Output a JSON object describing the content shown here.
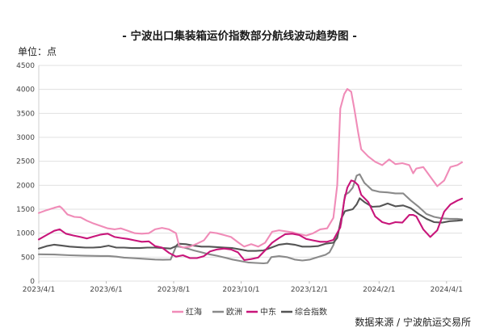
{
  "chart_data": {
    "type": "line",
    "title": "- 宁波出口集装箱运价指数部分航线波动趋势图 -",
    "unit_label": "单位：点",
    "source": "数据来源 / 宁波航运交易所",
    "ylim": [
      0,
      4500
    ],
    "y_ticks": [
      "0",
      "500",
      "1000",
      "1500",
      "2000",
      "2500",
      "3000",
      "3500",
      "4000",
      "4500"
    ],
    "x_tick_labels": [
      "2023/4/1",
      "2023/6/1",
      "2023/8/1",
      "2023/10/1",
      "2023/12/1",
      "2024/2/1",
      "2024/4/1"
    ],
    "x_tick_weeks": [
      0,
      8.7,
      17.4,
      26.1,
      34.9,
      43.9,
      52.6
    ],
    "x_range_weeks": [
      0,
      54.6
    ],
    "grid": true,
    "legend_position": "bottom",
    "series": [
      {
        "name": "红海",
        "color": "#f08cb8",
        "points": [
          [
            0,
            1420
          ],
          [
            1,
            1480
          ],
          [
            2,
            1530
          ],
          [
            2.7,
            1560
          ],
          [
            3,
            1520
          ],
          [
            3.7,
            1390
          ],
          [
            4.6,
            1340
          ],
          [
            5.4,
            1330
          ],
          [
            6.2,
            1260
          ],
          [
            7.1,
            1200
          ],
          [
            8,
            1150
          ],
          [
            8.9,
            1100
          ],
          [
            9.8,
            1080
          ],
          [
            10.6,
            1100
          ],
          [
            11.5,
            1050
          ],
          [
            12.4,
            1000
          ],
          [
            13.3,
            990
          ],
          [
            14.2,
            1000
          ],
          [
            15,
            1080
          ],
          [
            15.9,
            1110
          ],
          [
            16.8,
            1080
          ],
          [
            17.7,
            1000
          ],
          [
            18.1,
            740
          ],
          [
            18.6,
            700
          ],
          [
            19.5,
            720
          ],
          [
            20.4,
            780
          ],
          [
            21.3,
            850
          ],
          [
            22.1,
            1020
          ],
          [
            23,
            1000
          ],
          [
            23.9,
            960
          ],
          [
            24.8,
            920
          ],
          [
            25.7,
            810
          ],
          [
            26.5,
            720
          ],
          [
            27.4,
            770
          ],
          [
            28.3,
            720
          ],
          [
            29.2,
            800
          ],
          [
            30.1,
            1030
          ],
          [
            31,
            1060
          ],
          [
            31.8,
            1040
          ],
          [
            32.7,
            1020
          ],
          [
            33.6,
            980
          ],
          [
            34.5,
            950
          ],
          [
            35.4,
            1000
          ],
          [
            36.3,
            1080
          ],
          [
            37.2,
            1100
          ],
          [
            38,
            1320
          ],
          [
            38.5,
            2000
          ],
          [
            38.9,
            3600
          ],
          [
            39.4,
            3900
          ],
          [
            39.8,
            4010
          ],
          [
            40.3,
            3950
          ],
          [
            40.7,
            3600
          ],
          [
            41.2,
            3100
          ],
          [
            41.6,
            2750
          ],
          [
            42.5,
            2600
          ],
          [
            43.4,
            2490
          ],
          [
            44.3,
            2420
          ],
          [
            45.2,
            2540
          ],
          [
            46,
            2440
          ],
          [
            46.9,
            2460
          ],
          [
            47.8,
            2420
          ],
          [
            48.3,
            2250
          ],
          [
            48.7,
            2350
          ],
          [
            49.6,
            2380
          ],
          [
            50.5,
            2180
          ],
          [
            51.4,
            1980
          ],
          [
            52.3,
            2100
          ],
          [
            53.1,
            2380
          ],
          [
            54,
            2420
          ],
          [
            54.6,
            2480
          ]
        ]
      },
      {
        "name": "欧洲",
        "color": "#8a8a8a",
        "points": [
          [
            0,
            560
          ],
          [
            2,
            555
          ],
          [
            4,
            540
          ],
          [
            6,
            530
          ],
          [
            8,
            525
          ],
          [
            9,
            525
          ],
          [
            10,
            510
          ],
          [
            11,
            490
          ],
          [
            12,
            480
          ],
          [
            13,
            470
          ],
          [
            14,
            460
          ],
          [
            15,
            450
          ],
          [
            16,
            445
          ],
          [
            17,
            450
          ],
          [
            17.7,
            720
          ],
          [
            18.1,
            720
          ],
          [
            19,
            690
          ],
          [
            20,
            640
          ],
          [
            21,
            600
          ],
          [
            22,
            560
          ],
          [
            23,
            530
          ],
          [
            24,
            490
          ],
          [
            25,
            450
          ],
          [
            26,
            420
          ],
          [
            27,
            390
          ],
          [
            28,
            380
          ],
          [
            29,
            370
          ],
          [
            29.5,
            380
          ],
          [
            30,
            500
          ],
          [
            31,
            520
          ],
          [
            32,
            500
          ],
          [
            33,
            450
          ],
          [
            34,
            430
          ],
          [
            35,
            450
          ],
          [
            36,
            500
          ],
          [
            37,
            550
          ],
          [
            37.5,
            600
          ],
          [
            38,
            750
          ],
          [
            39,
            1200
          ],
          [
            39.5,
            1800
          ],
          [
            40,
            1850
          ],
          [
            40.5,
            1950
          ],
          [
            41,
            2200
          ],
          [
            41.4,
            2230
          ],
          [
            42,
            2050
          ],
          [
            43,
            1900
          ],
          [
            44,
            1860
          ],
          [
            45,
            1850
          ],
          [
            46,
            1830
          ],
          [
            47,
            1830
          ],
          [
            48,
            1680
          ],
          [
            49,
            1550
          ],
          [
            50,
            1400
          ],
          [
            51,
            1340
          ],
          [
            52,
            1310
          ],
          [
            53,
            1300
          ],
          [
            54,
            1300
          ],
          [
            54.6,
            1290
          ]
        ]
      },
      {
        "name": "中东",
        "color": "#c8157a",
        "points": [
          [
            0,
            870
          ],
          [
            1,
            960
          ],
          [
            2,
            1050
          ],
          [
            2.7,
            1080
          ],
          [
            3.5,
            990
          ],
          [
            4.5,
            950
          ],
          [
            5.4,
            920
          ],
          [
            6.2,
            890
          ],
          [
            7.1,
            930
          ],
          [
            8,
            970
          ],
          [
            8.9,
            990
          ],
          [
            9.8,
            920
          ],
          [
            10.6,
            900
          ],
          [
            11.5,
            880
          ],
          [
            12.4,
            850
          ],
          [
            13.3,
            820
          ],
          [
            14.2,
            830
          ],
          [
            15,
            730
          ],
          [
            15.9,
            700
          ],
          [
            16.8,
            590
          ],
          [
            17.7,
            510
          ],
          [
            18.6,
            540
          ],
          [
            19.5,
            480
          ],
          [
            20.4,
            480
          ],
          [
            21.3,
            520
          ],
          [
            22.1,
            620
          ],
          [
            23,
            660
          ],
          [
            23.9,
            680
          ],
          [
            24.8,
            660
          ],
          [
            25.7,
            600
          ],
          [
            26.5,
            440
          ],
          [
            27.4,
            460
          ],
          [
            28.3,
            490
          ],
          [
            29.2,
            640
          ],
          [
            30.1,
            800
          ],
          [
            31,
            900
          ],
          [
            31.8,
            980
          ],
          [
            32.7,
            990
          ],
          [
            33.6,
            960
          ],
          [
            34.5,
            880
          ],
          [
            35.4,
            850
          ],
          [
            36.3,
            820
          ],
          [
            37.2,
            820
          ],
          [
            38,
            860
          ],
          [
            38.9,
            1120
          ],
          [
            39.4,
            1680
          ],
          [
            39.8,
            1950
          ],
          [
            40.3,
            2100
          ],
          [
            40.7,
            2080
          ],
          [
            41.2,
            2000
          ],
          [
            41.6,
            1800
          ],
          [
            42.5,
            1650
          ],
          [
            43.4,
            1350
          ],
          [
            44.3,
            1230
          ],
          [
            45.2,
            1190
          ],
          [
            46,
            1230
          ],
          [
            46.9,
            1220
          ],
          [
            47.8,
            1380
          ],
          [
            48.3,
            1380
          ],
          [
            48.7,
            1350
          ],
          [
            49.6,
            1080
          ],
          [
            50.5,
            920
          ],
          [
            51.4,
            1060
          ],
          [
            52.3,
            1450
          ],
          [
            53.1,
            1600
          ],
          [
            54,
            1680
          ],
          [
            54.6,
            1720
          ]
        ]
      },
      {
        "name": "综合指数",
        "color": "#555555",
        "points": [
          [
            0,
            680
          ],
          [
            1,
            730
          ],
          [
            2,
            760
          ],
          [
            3,
            740
          ],
          [
            4,
            720
          ],
          [
            5,
            710
          ],
          [
            6,
            700
          ],
          [
            7,
            700
          ],
          [
            8,
            710
          ],
          [
            9,
            740
          ],
          [
            10,
            700
          ],
          [
            11,
            700
          ],
          [
            12,
            690
          ],
          [
            13,
            690
          ],
          [
            14,
            700
          ],
          [
            15,
            700
          ],
          [
            16,
            690
          ],
          [
            17,
            680
          ],
          [
            17.7,
            730
          ],
          [
            18,
            780
          ],
          [
            19,
            770
          ],
          [
            20,
            740
          ],
          [
            21,
            720
          ],
          [
            22,
            720
          ],
          [
            23,
            710
          ],
          [
            24,
            700
          ],
          [
            25,
            690
          ],
          [
            26,
            660
          ],
          [
            27,
            630
          ],
          [
            28,
            630
          ],
          [
            29,
            640
          ],
          [
            30,
            700
          ],
          [
            31,
            760
          ],
          [
            32,
            780
          ],
          [
            33,
            760
          ],
          [
            34,
            720
          ],
          [
            35,
            720
          ],
          [
            36,
            730
          ],
          [
            37,
            780
          ],
          [
            38,
            800
          ],
          [
            38.5,
            900
          ],
          [
            39,
            1300
          ],
          [
            39.5,
            1460
          ],
          [
            40,
            1480
          ],
          [
            40.5,
            1500
          ],
          [
            41,
            1600
          ],
          [
            41.4,
            1730
          ],
          [
            42,
            1650
          ],
          [
            43,
            1550
          ],
          [
            44,
            1560
          ],
          [
            45,
            1620
          ],
          [
            46,
            1560
          ],
          [
            47,
            1580
          ],
          [
            48,
            1520
          ],
          [
            49,
            1400
          ],
          [
            50,
            1300
          ],
          [
            51,
            1230
          ],
          [
            52,
            1220
          ],
          [
            53,
            1250
          ],
          [
            54,
            1260
          ],
          [
            54.6,
            1270
          ]
        ]
      }
    ]
  }
}
